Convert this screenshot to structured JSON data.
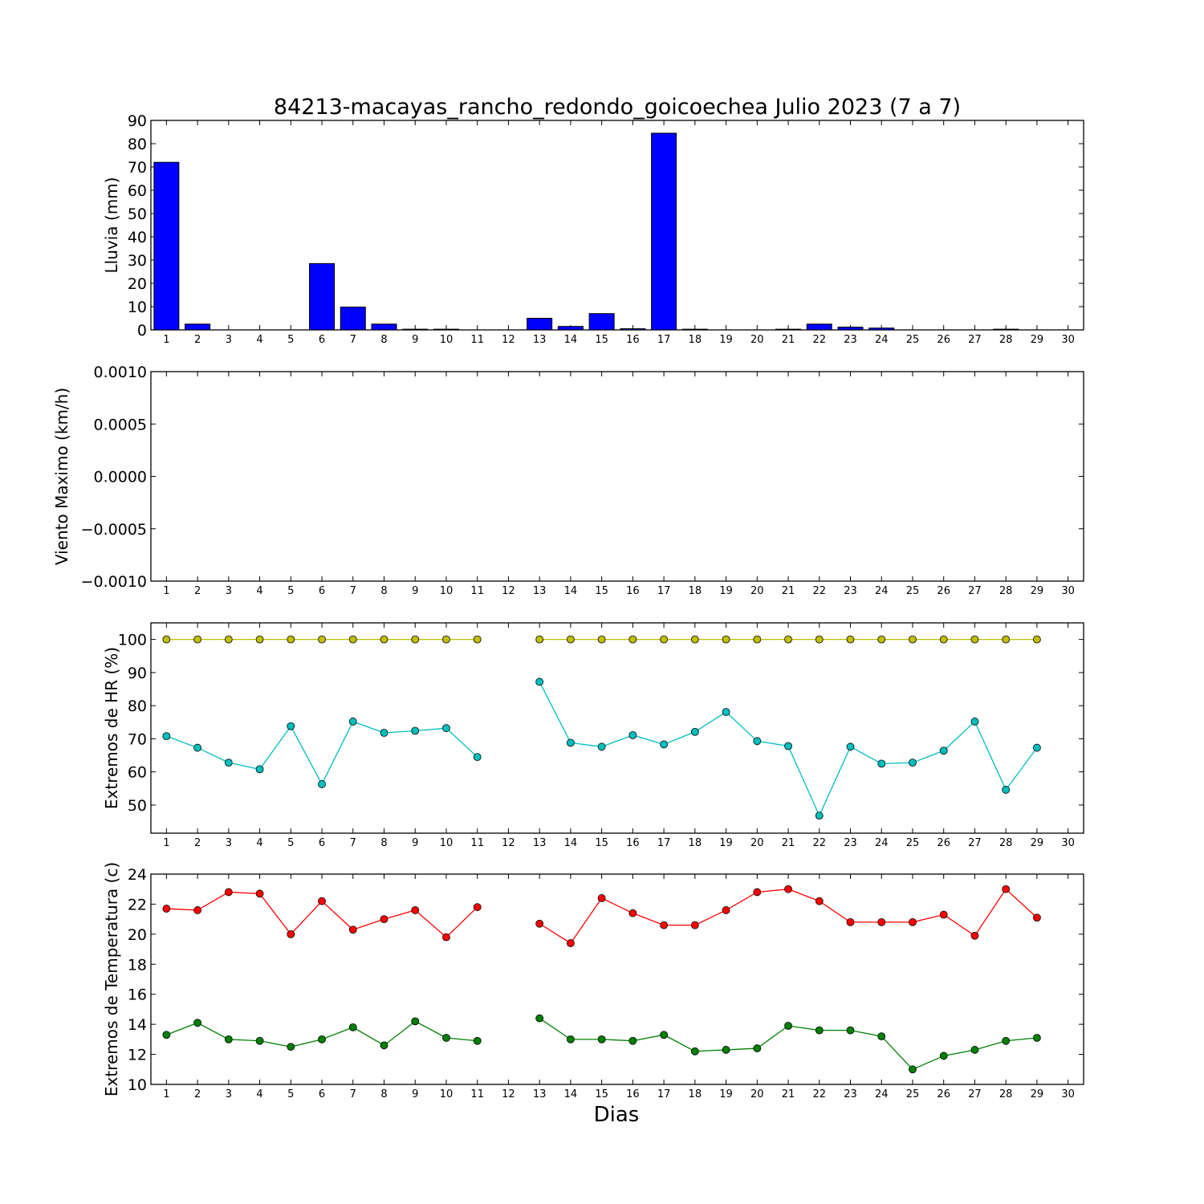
{
  "title": "84213-macayas_rancho_redondo_goicoechea Julio 2023  (7 a 7)",
  "xlabel": "Dias",
  "chart_data": [
    {
      "type": "bar",
      "ylabel": "Lluvia (mm)",
      "ylim": [
        0,
        90
      ],
      "yticks": [
        "0",
        "10",
        "20",
        "30",
        "40",
        "50",
        "60",
        "70",
        "80",
        "90"
      ],
      "categories": [
        "1",
        "2",
        "3",
        "4",
        "5",
        "6",
        "7",
        "8",
        "9",
        "10",
        "11",
        "12",
        "13",
        "14",
        "15",
        "16",
        "17",
        "18",
        "19",
        "20",
        "21",
        "22",
        "23",
        "24",
        "25",
        "26",
        "27",
        "28",
        "29",
        "30"
      ],
      "series": [
        {
          "color": "#0000ff",
          "values": [
            72,
            2.5,
            0,
            0,
            0,
            28.5,
            9.8,
            2.5,
            0.3,
            0.3,
            0,
            0,
            5,
            1.5,
            7,
            0.5,
            84.5,
            0.3,
            0,
            0,
            0.3,
            2.5,
            1.2,
            0.8,
            0,
            0,
            0,
            0.3,
            0,
            0
          ]
        }
      ]
    },
    {
      "type": "line",
      "ylabel": "Viento Maximo (km/h)",
      "ylim": [
        -0.001,
        0.001
      ],
      "yticks": [
        "−0.0010",
        "−0.0005",
        "0.0000",
        "0.0005",
        "0.0010"
      ],
      "categories": [
        "1",
        "2",
        "3",
        "4",
        "5",
        "6",
        "7",
        "8",
        "9",
        "10",
        "11",
        "12",
        "13",
        "14",
        "15",
        "16",
        "17",
        "18",
        "19",
        "20",
        "21",
        "22",
        "23",
        "24",
        "25",
        "26",
        "27",
        "28",
        "29",
        "30"
      ],
      "series": []
    },
    {
      "type": "line",
      "ylabel": "Extremos de HR (%)",
      "ylim": [
        41.5,
        105
      ],
      "yticks": [
        "50",
        "60",
        "70",
        "80",
        "90",
        "100"
      ],
      "categories": [
        "1",
        "2",
        "3",
        "4",
        "5",
        "6",
        "7",
        "8",
        "9",
        "10",
        "11",
        "12",
        "13",
        "14",
        "15",
        "16",
        "17",
        "18",
        "19",
        "20",
        "21",
        "22",
        "23",
        "24",
        "25",
        "26",
        "27",
        "28",
        "29",
        "30"
      ],
      "series": [
        {
          "color": "#bfbf00",
          "values": [
            100,
            100,
            100,
            100,
            100,
            100,
            100,
            100,
            100,
            100,
            100,
            null,
            100,
            100,
            100,
            100,
            100,
            100,
            100,
            100,
            100,
            100,
            100,
            100,
            100,
            100,
            100,
            100,
            100,
            null
          ]
        },
        {
          "color": "#00bfbf",
          "values": [
            70.8,
            67.3,
            62.8,
            60.8,
            73.8,
            56.3,
            75.2,
            71.8,
            72.4,
            73.2,
            64.5,
            null,
            87.2,
            68.8,
            67.6,
            71.1,
            68.3,
            72.1,
            78.1,
            69.3,
            67.8,
            46.8,
            67.6,
            62.5,
            62.8,
            66.4,
            75.2,
            54.6,
            67.3,
            null
          ]
        }
      ]
    },
    {
      "type": "line",
      "ylabel": "Extremos de Temperatura (c)",
      "ylim": [
        10,
        24
      ],
      "yticks": [
        "10",
        "12",
        "14",
        "16",
        "18",
        "20",
        "22",
        "24"
      ],
      "categories": [
        "1",
        "2",
        "3",
        "4",
        "5",
        "6",
        "7",
        "8",
        "9",
        "10",
        "11",
        "12",
        "13",
        "14",
        "15",
        "16",
        "17",
        "18",
        "19",
        "20",
        "21",
        "22",
        "23",
        "24",
        "25",
        "26",
        "27",
        "28",
        "29",
        "30"
      ],
      "series": [
        {
          "color": "#ff0000",
          "values": [
            21.7,
            21.6,
            22.8,
            22.7,
            20.0,
            22.2,
            20.3,
            21.0,
            21.6,
            19.8,
            21.8,
            null,
            20.7,
            19.4,
            22.4,
            21.4,
            20.6,
            20.6,
            21.6,
            22.8,
            23.0,
            22.2,
            20.8,
            20.8,
            20.8,
            21.3,
            19.9,
            23.0,
            21.1,
            null
          ]
        },
        {
          "color": "#008000",
          "values": [
            13.3,
            14.1,
            13.0,
            12.9,
            12.5,
            13.0,
            13.8,
            12.6,
            14.2,
            13.1,
            12.9,
            null,
            14.4,
            13.0,
            13.0,
            12.9,
            13.3,
            12.2,
            12.3,
            12.4,
            13.9,
            13.6,
            13.6,
            13.2,
            11.0,
            11.9,
            12.3,
            12.9,
            13.1,
            null
          ]
        }
      ]
    }
  ]
}
